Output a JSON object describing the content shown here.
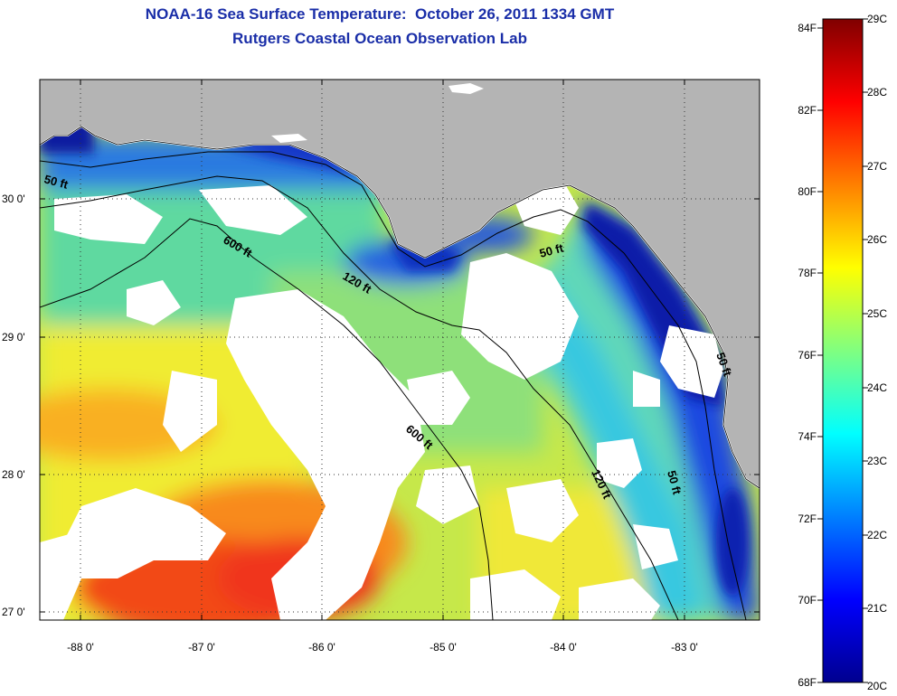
{
  "header": {
    "title": "NOAA-16 Sea Surface Temperature:  October 26, 2011 1334 GMT",
    "subtitle": "Rutgers Coastal Ocean Observation Lab"
  },
  "map": {
    "lon_ticks": [
      "-88 0'",
      "-87 0'",
      "-86 0'",
      "-85 0'",
      "-84 0'",
      "-83 0'"
    ],
    "lat_ticks": [
      "30 0'",
      "29 0'",
      "28 0'",
      "27 0'"
    ],
    "contour_labels": [
      "50 ft",
      "600 ft",
      "120 ft",
      "50 ft",
      "50 ft",
      "600 ft",
      "120 ft",
      "50 ft"
    ],
    "colors": {
      "land": "#b4b4b4",
      "cloud": "#ffffff",
      "contour": "#000000"
    }
  },
  "colorbar": {
    "fahrenheit_labels": [
      "84F",
      "82F",
      "80F",
      "78F",
      "76F",
      "74F",
      "72F",
      "70F",
      "68F"
    ],
    "celsius_labels": [
      "29C",
      "28C",
      "27C",
      "26C",
      "25C",
      "24C",
      "23C",
      "22C",
      "21C",
      "20C"
    ],
    "min_c": 20,
    "max_c": 29
  }
}
